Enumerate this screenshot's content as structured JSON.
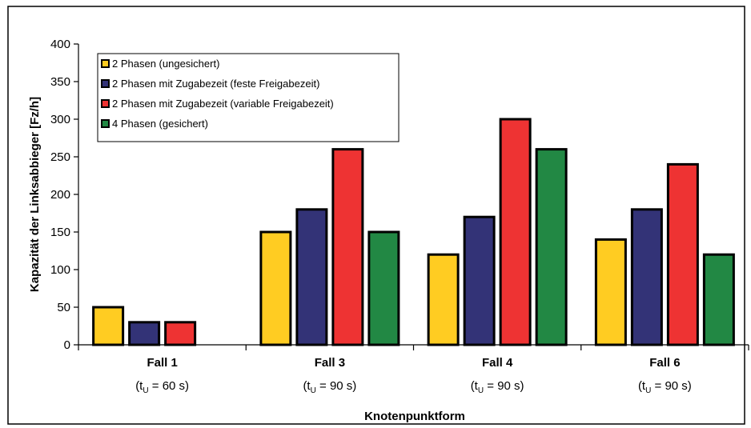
{
  "chart_data": {
    "type": "bar",
    "categories": [
      {
        "name": "Fall 1",
        "sub_prefix": "(t",
        "sub_subscript": "U",
        "sub_suffix": " = 60 s)"
      },
      {
        "name": "Fall 3",
        "sub_prefix": "(t",
        "sub_subscript": "U",
        "sub_suffix": " = 90 s)"
      },
      {
        "name": "Fall 4",
        "sub_prefix": "(t",
        "sub_subscript": "U",
        "sub_suffix": " = 90 s)"
      },
      {
        "name": "Fall 6",
        "sub_prefix": "(t",
        "sub_subscript": "U",
        "sub_suffix": " = 90 s)"
      }
    ],
    "series": [
      {
        "name": "2 Phasen (ungesichert)",
        "color": "#FFCC22",
        "values": [
          50,
          150,
          120,
          140
        ]
      },
      {
        "name": "2 Phasen mit Zugabezeit (feste Freigabezeit)",
        "color": "#333377",
        "values": [
          30,
          180,
          170,
          180
        ]
      },
      {
        "name": "2 Phasen mit Zugabezeit (variable Freigabezeit)",
        "color": "#EE3333",
        "values": [
          30,
          260,
          300,
          240
        ]
      },
      {
        "name": "4 Phasen (gesichert)",
        "color": "#228844",
        "values": [
          null,
          150,
          260,
          120
        ]
      }
    ],
    "xlabel": "Knotenpunktform",
    "ylabel": "Kapazität der Linksabbieger [Fz/h]",
    "ylim": [
      0,
      400
    ],
    "yticks": [
      0,
      50,
      100,
      150,
      200,
      250,
      300,
      350,
      400
    ],
    "grid": false,
    "legend_position": "top-left"
  }
}
